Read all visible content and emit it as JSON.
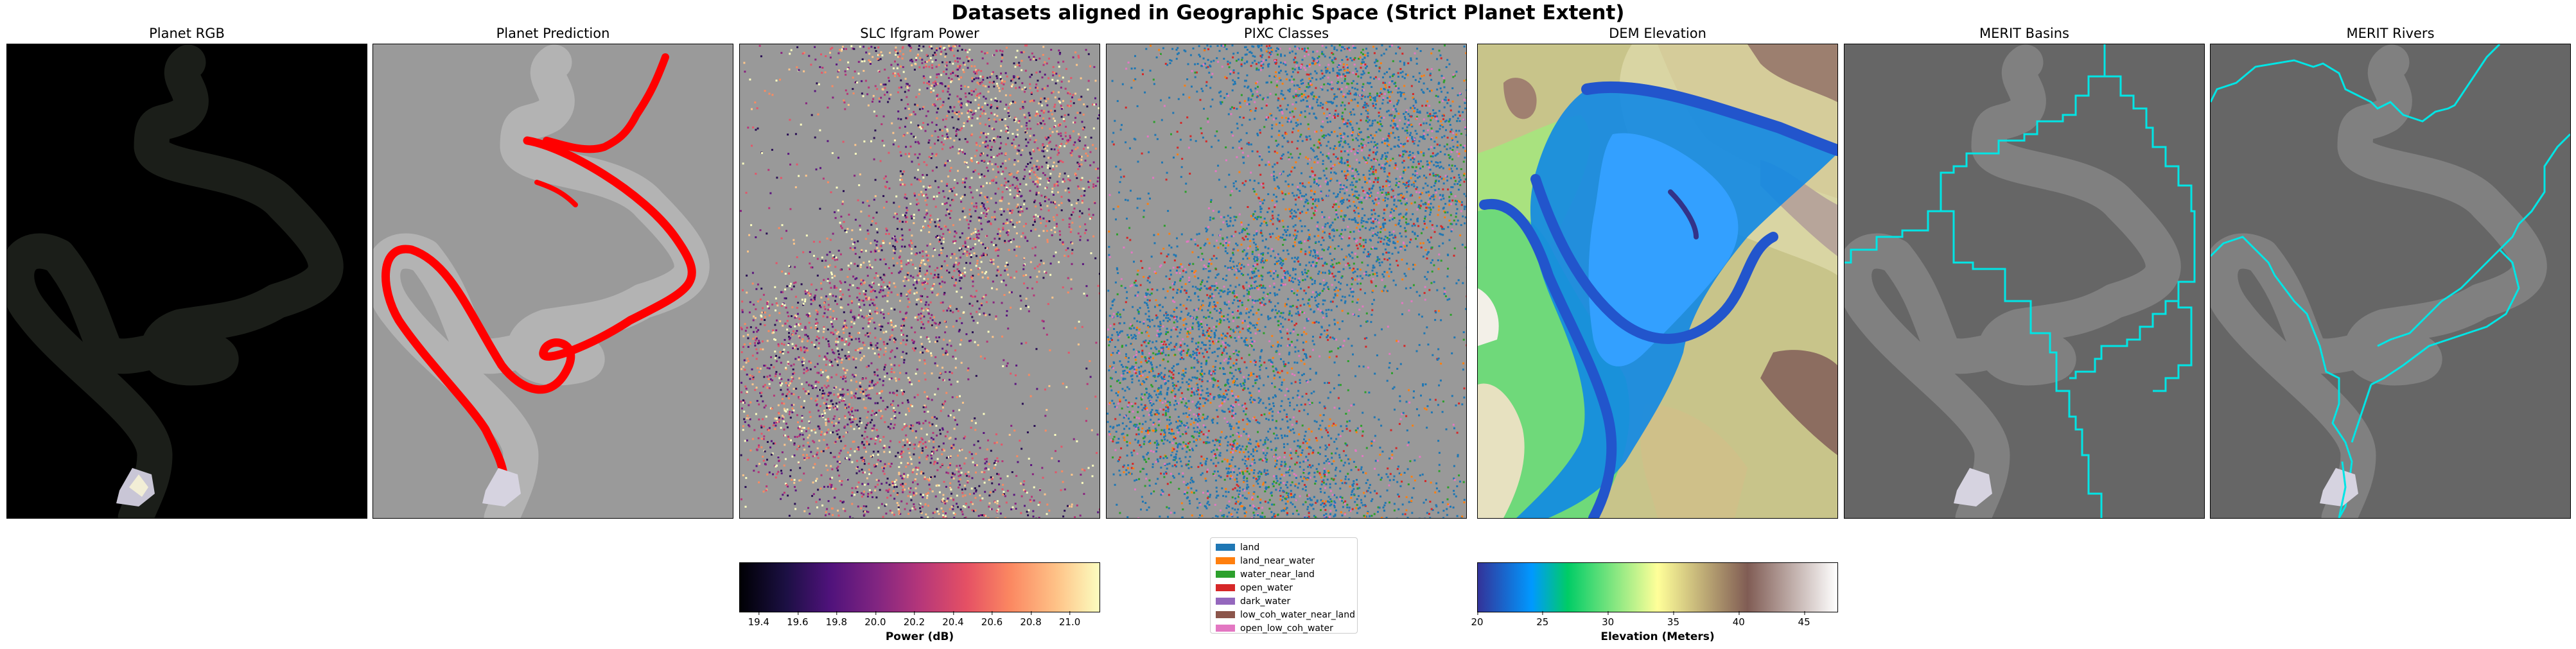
{
  "suptitle": "Datasets aligned in Geographic Space (Strict Planet Extent)",
  "chart_data": [
    {
      "type": "image",
      "title": "Planet RGB"
    },
    {
      "type": "image",
      "title": "Planet Prediction"
    },
    {
      "type": "heatmap",
      "title": "SLC Ifgram Power",
      "colormap": "magma",
      "colorbar": {
        "label": "Power (dB)",
        "range": [
          19.3,
          21.15
        ],
        "ticks": [
          "19.4",
          "19.6",
          "19.8",
          "20.0",
          "20.2",
          "20.4",
          "20.6",
          "20.8",
          "21.0"
        ]
      }
    },
    {
      "type": "heatmap",
      "title": "PIXC Classes",
      "legend": [
        {
          "label": "land",
          "color": "#1f77b4"
        },
        {
          "label": "land_near_water",
          "color": "#ff7f0e"
        },
        {
          "label": "water_near_land",
          "color": "#2ca02c"
        },
        {
          "label": "open_water",
          "color": "#d62728"
        },
        {
          "label": "dark_water",
          "color": "#9467bd"
        },
        {
          "label": "low_coh_water_near_land",
          "color": "#8c564b"
        },
        {
          "label": "open_low_coh_water",
          "color": "#e377c2"
        }
      ]
    },
    {
      "type": "heatmap",
      "title": "DEM Elevation",
      "colormap": "terrain",
      "colorbar": {
        "label": "Elevation (Meters)",
        "range": [
          20,
          47.5
        ],
        "ticks": [
          "20",
          "25",
          "30",
          "35",
          "40",
          "45"
        ]
      }
    },
    {
      "type": "image",
      "title": "MERIT Basins"
    },
    {
      "type": "image",
      "title": "MERIT Rivers"
    }
  ]
}
